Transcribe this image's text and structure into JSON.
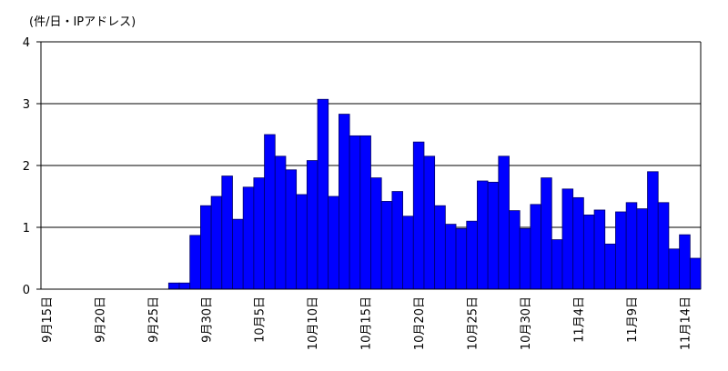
{
  "chart_data": {
    "type": "bar",
    "y_label": "(件/日・IPアドレス)",
    "categories": [
      "9月15日",
      null,
      null,
      null,
      null,
      "9月20日",
      null,
      null,
      null,
      null,
      "9月25日",
      null,
      null,
      null,
      null,
      "9月30日",
      null,
      null,
      null,
      null,
      "10月5日",
      null,
      null,
      null,
      null,
      "10月10日",
      null,
      null,
      null,
      null,
      "10月15日",
      null,
      null,
      null,
      null,
      "10月20日",
      null,
      null,
      null,
      null,
      "10月25日",
      null,
      null,
      null,
      null,
      "10月30日",
      null,
      null,
      null,
      null,
      "11月4日",
      null,
      null,
      null,
      null,
      "11月9日",
      null,
      null,
      null,
      null,
      "11月14日",
      null
    ],
    "values": [
      0,
      0,
      0,
      0,
      0,
      0,
      0,
      0,
      0,
      0,
      0,
      0,
      0.1,
      0.1,
      0.87,
      1.35,
      1.5,
      1.83,
      1.13,
      1.65,
      1.8,
      2.5,
      2.15,
      1.93,
      1.53,
      2.08,
      3.07,
      1.5,
      2.83,
      2.48,
      2.48,
      1.8,
      1.42,
      1.58,
      1.18,
      2.38,
      2.15,
      1.35,
      1.05,
      0.98,
      1.1,
      1.75,
      1.73,
      2.15,
      1.27,
      0.98,
      1.37,
      1.8,
      0.8,
      1.62,
      1.48,
      1.2,
      1.28,
      0.73,
      1.25,
      1.4,
      1.3,
      1.9,
      1.4,
      0.65,
      0.88,
      0.5
    ],
    "color": "#0000ff",
    "ylim": [
      0,
      4
    ],
    "yticks": [
      0,
      1,
      2,
      3,
      4
    ],
    "grid": true
  }
}
